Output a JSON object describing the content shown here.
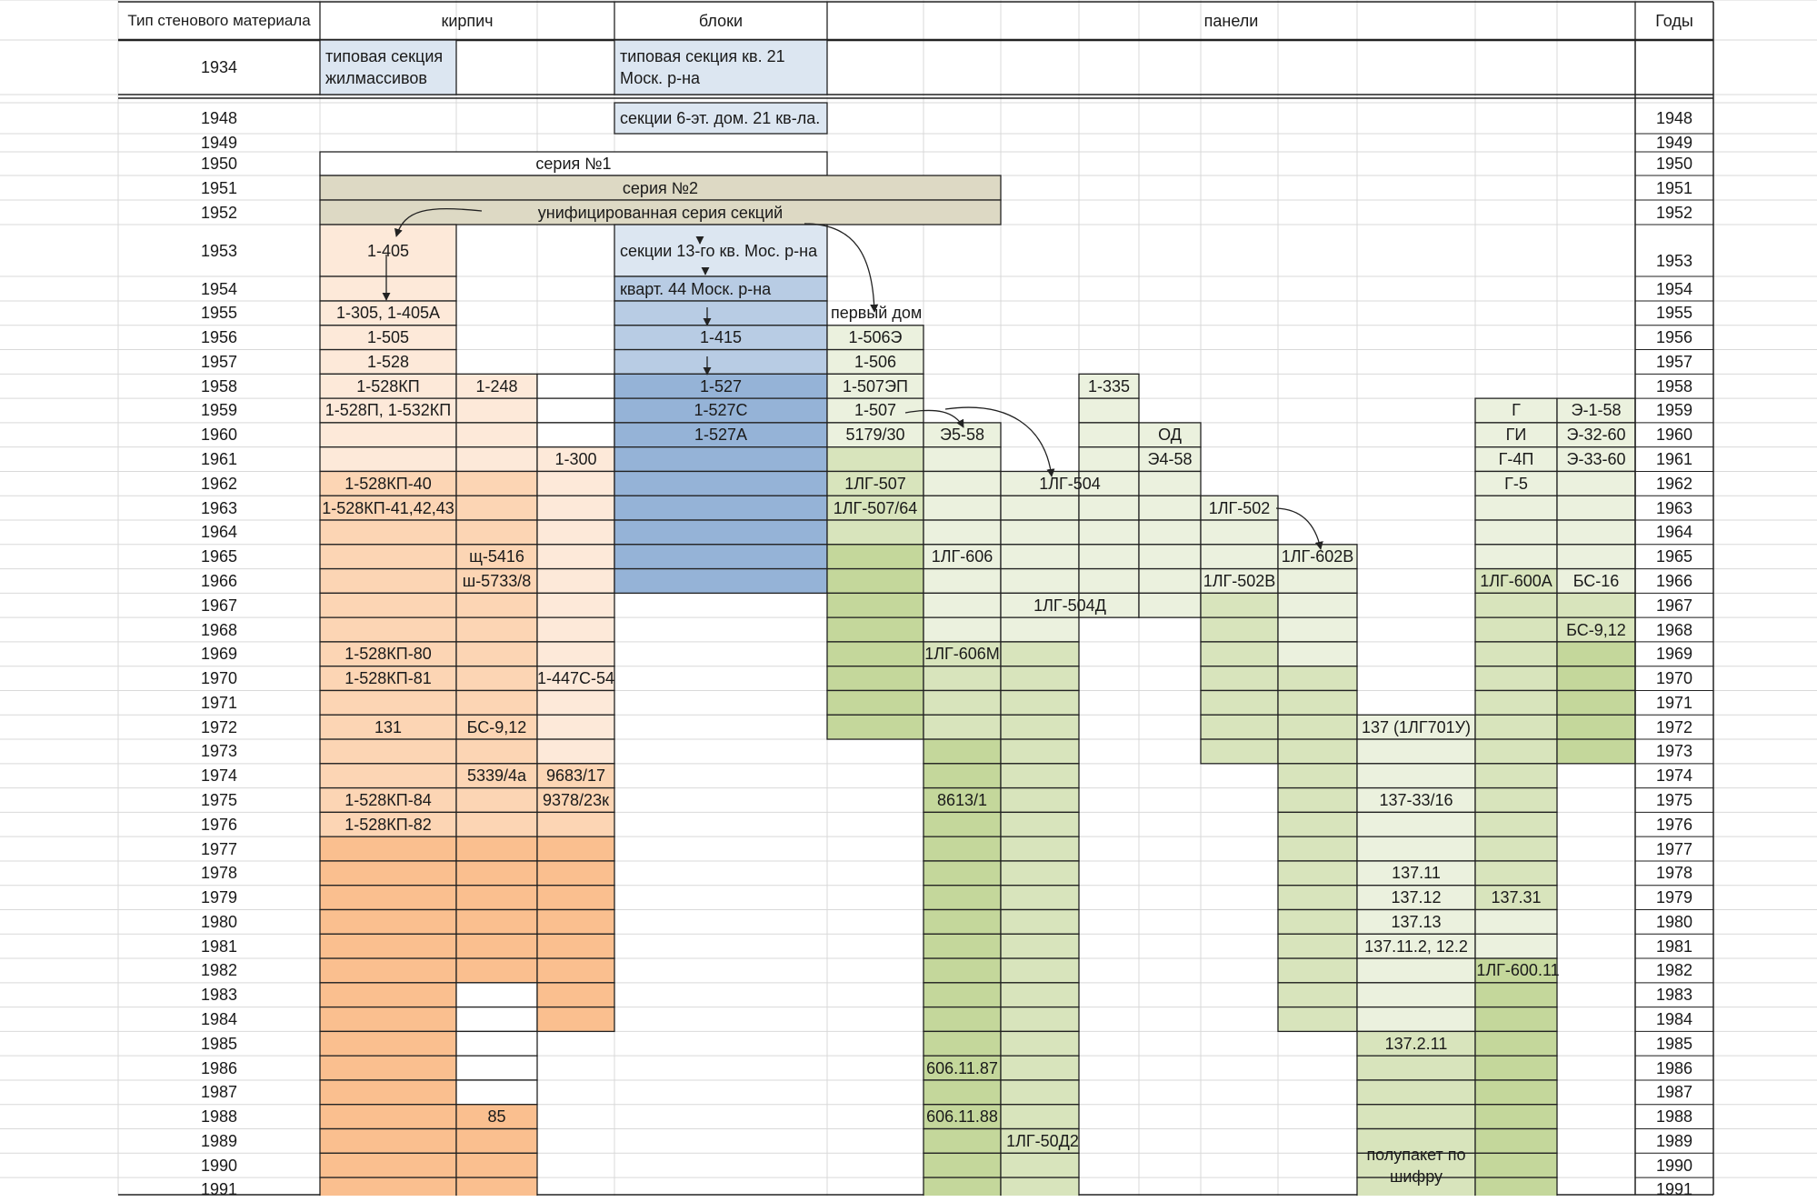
{
  "header": {
    "wall_type": "Тип стенового материала",
    "brick": "кирпич",
    "blocks": "блоки",
    "panels": "панели",
    "years": "Годы"
  },
  "years_left": [
    "1934",
    "1948",
    "1949",
    "1950",
    "1951",
    "1952",
    "1953",
    "1954",
    "1955",
    "1956",
    "1957",
    "1958",
    "1959",
    "1960",
    "1961",
    "1962",
    "1963",
    "1964",
    "1965",
    "1966",
    "1967",
    "1968",
    "1969",
    "1970",
    "1971",
    "1972",
    "1973",
    "1974",
    "1975",
    "1976",
    "1977",
    "1978",
    "1979",
    "1980",
    "1981",
    "1982",
    "1983",
    "1984",
    "1985",
    "1986",
    "1987",
    "1988",
    "1989",
    "1990",
    "1991"
  ],
  "years_right": [
    "1948",
    "1949",
    "1950",
    "1951",
    "1952",
    "1953",
    "1954",
    "1955",
    "1956",
    "1957",
    "1958",
    "1959",
    "1960",
    "1961",
    "1962",
    "1963",
    "1964",
    "1965",
    "1966",
    "1967",
    "1968",
    "1969",
    "1970",
    "1971",
    "1972",
    "1973",
    "1974",
    "1975",
    "1976",
    "1977",
    "1978",
    "1979",
    "1980",
    "1981",
    "1982",
    "1983",
    "1984",
    "1985",
    "1986",
    "1987",
    "1988",
    "1989",
    "1990",
    "1991"
  ],
  "spans": {
    "series1": "серия №1",
    "series2": "серия №2",
    "unified": "унифицированная серия секций"
  },
  "brick_series": {
    "typical_section": "типовая секция жилмассивов",
    "s1953": "1-405",
    "s1955": "1-305, 1-405А",
    "s1956": "1-505",
    "s1957": "1-528",
    "s1958a": "1-528КП",
    "s1958b": "1-248",
    "s1959": "1-528П, 1-532КП",
    "s1961": "1-300",
    "s1962": "1-528КП-40",
    "s1963": "1-528КП-41,42,43",
    "s1965": "щ-5416",
    "s1966": "ш-5733/8",
    "s1969": "1-528КП-80",
    "s1970a": "1-528КП-81",
    "s1970b": "1-447С-54",
    "s1972a": "131",
    "s1972b": "БС-9,12",
    "s1974a": "5339/4а",
    "s1974b": "9683/17",
    "s1975a": "1-528КП-84",
    "s1975b": "9378/23к",
    "s1976": "1-528КП-82",
    "s1988": "85"
  },
  "block_series": {
    "typical_section": "типовая секция кв. 21 Моск. р-на",
    "s1948": "секции 6-эт. дом. 21 кв-ла.",
    "s1953": "секции 13-го кв. Мос. р-на",
    "s1954": "кварт. 44 Моск. р-на",
    "s1956": "1-415",
    "s1958": "1-527",
    "s1959": "1-527С",
    "s1960": "1-527А"
  },
  "panel_series": {
    "first_house": "первый дом",
    "p1956": "1-506Э",
    "p1957": "1-506",
    "p1958a": "1-507ЭП",
    "p1958b": "1-335",
    "p1959a": "1-507",
    "p1959b": "Г",
    "p1959c": "Э-1-58",
    "p1960a": "5179/30",
    "p1960b": "Э5-58",
    "p1960c": "ОД",
    "p1960d": "ГИ",
    "p1960e": "Э-32-60",
    "p1961a": "Э4-58",
    "p1961b": "Г-4П",
    "p1961c": "Э-33-60",
    "p1962a": "1ЛГ-507",
    "p1962b": "1ЛГ-504",
    "p1962c": "Г-5",
    "p1963a": "1ЛГ-507/64",
    "p1963b": "1ЛГ-502",
    "p1965a": "1ЛГ-606",
    "p1965b": "1ЛГ-602В",
    "p1966a": "1ЛГ-502В",
    "p1966b": "1ЛГ-600А",
    "p1966c": "БС-16",
    "p1967": "1ЛГ-504Д",
    "p1968": "БС-9,12",
    "p1969": "1ЛГ-606М",
    "p1972": "137 (1ЛГ701У)",
    "p1975a": "8613/1",
    "p1975b": "137-33/16",
    "p1978": "137.11",
    "p1979a": "137.12",
    "p1979b": "137.31",
    "p1980": "137.13",
    "p1981": "137.11.2, 12.2",
    "p1982": "1ЛГ-600.11",
    "p1985": "137.2.11",
    "p1986": "606.11.87",
    "p1988": "606.11.88",
    "p1989": "1ЛГ-50Д2",
    "p1990": "полупакет по шифру"
  },
  "colors": {
    "brick_light": "#fde9d9",
    "brick_mid": "#fcd5b4",
    "brick_dark": "#fabf8f",
    "block_light": "#dce6f1",
    "block_mid": "#b8cce4",
    "block_dark": "#95b3d7",
    "panel_light": "#ebf1de",
    "panel_mid": "#d8e4bc",
    "panel_dark": "#c4d79b",
    "tan": "#ddd9c4"
  }
}
